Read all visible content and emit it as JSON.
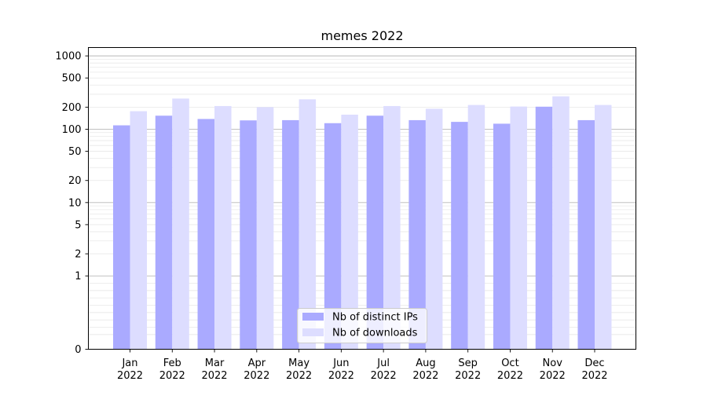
{
  "chart_data": {
    "type": "bar",
    "title": "memes 2022",
    "xlabel": "",
    "ylabel": "",
    "y_scale": "symlog",
    "ylim": [
      0,
      1300
    ],
    "y_ticks": [
      0,
      1,
      2,
      5,
      10,
      20,
      50,
      100,
      200,
      500,
      1000
    ],
    "y_tick_labels": [
      "0",
      "1",
      "2",
      "5",
      "10",
      "20",
      "50",
      "100",
      "200",
      "500",
      "1000"
    ],
    "categories": [
      [
        "Jan",
        "2022"
      ],
      [
        "Feb",
        "2022"
      ],
      [
        "Mar",
        "2022"
      ],
      [
        "Apr",
        "2022"
      ],
      [
        "May",
        "2022"
      ],
      [
        "Jun",
        "2022"
      ],
      [
        "Jul",
        "2022"
      ],
      [
        "Aug",
        "2022"
      ],
      [
        "Sep",
        "2022"
      ],
      [
        "Oct",
        "2022"
      ],
      [
        "Nov",
        "2022"
      ],
      [
        "Dec",
        "2022"
      ]
    ],
    "series": [
      {
        "name": "Nb of distinct IPs",
        "color": "#aaaaff",
        "values": [
          113,
          153,
          138,
          132,
          133,
          121,
          153,
          133,
          126,
          119,
          203,
          133
        ]
      },
      {
        "name": "Nb of downloads",
        "color": "#ddddff",
        "values": [
          176,
          262,
          207,
          200,
          256,
          158,
          207,
          190,
          214,
          204,
          281,
          214
        ]
      }
    ],
    "grid": true,
    "legend_position": "bottom-center"
  }
}
